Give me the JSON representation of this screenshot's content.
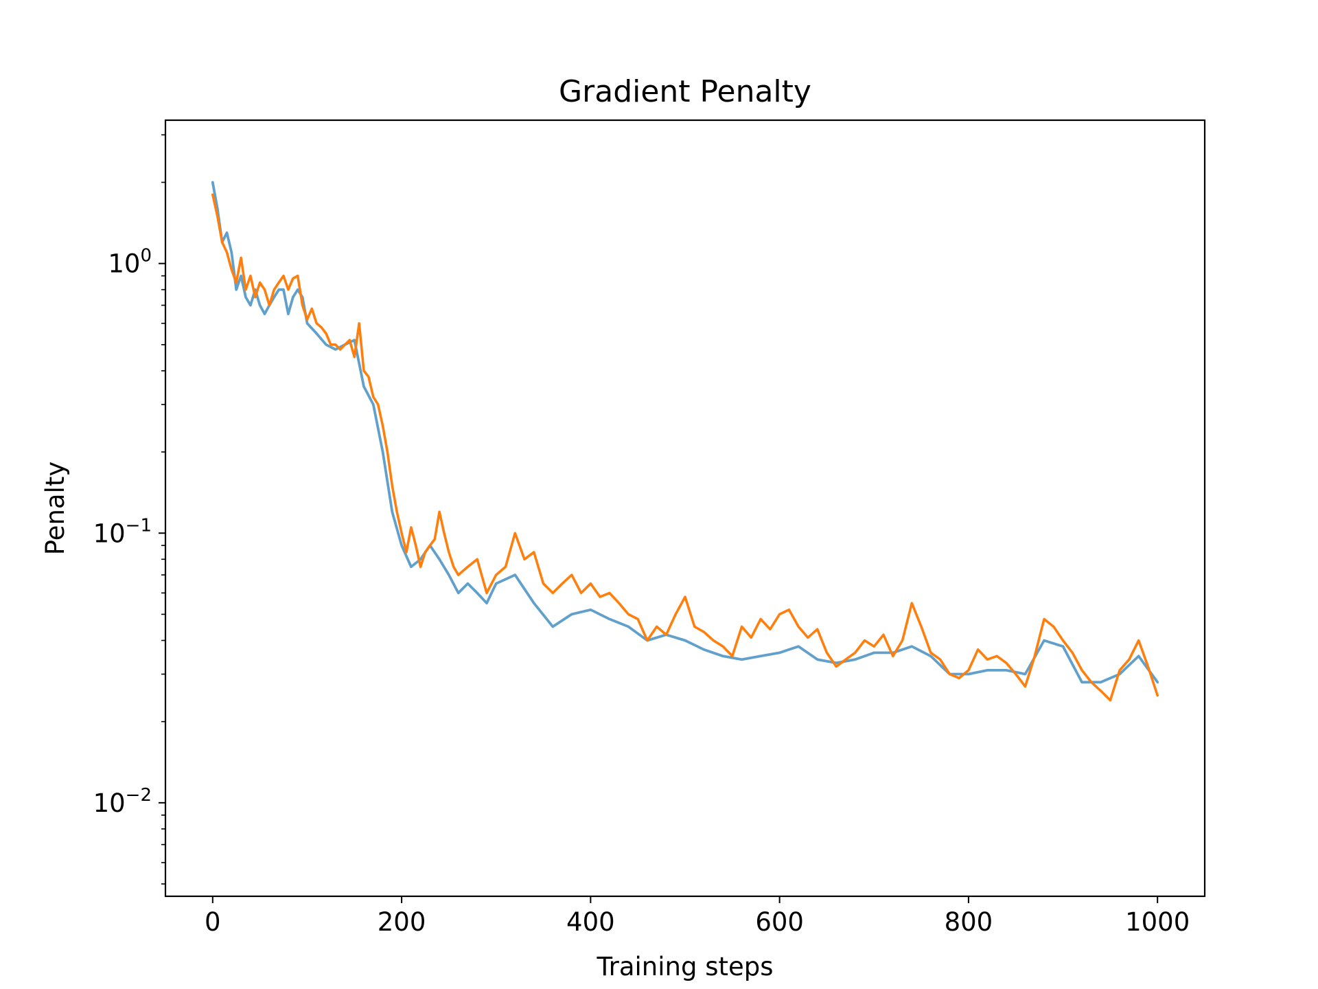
{
  "chart_data": {
    "type": "line",
    "title": "Gradient Penalty",
    "xlabel": "Training steps",
    "ylabel": "Penalty",
    "yscale": "log",
    "xlim": [
      -50,
      1050
    ],
    "ylim": [
      0.0045,
      3.4
    ],
    "grid": false,
    "xticks": [
      0,
      200,
      400,
      600,
      800,
      1000
    ],
    "xtick_labels": [
      "0",
      "200",
      "400",
      "600",
      "800",
      "1000"
    ],
    "yticks": [
      0.01,
      0.1,
      1
    ],
    "ytick_labels": [
      {
        "base": "10",
        "exp": "−2"
      },
      {
        "base": "10",
        "exp": "−1"
      },
      {
        "base": "10",
        "exp": "0"
      }
    ],
    "series": [
      {
        "color": "#62a0cc",
        "style": "raw",
        "x": [
          0,
          5,
          10,
          15,
          20,
          25,
          30,
          35,
          40,
          45,
          50,
          55,
          60,
          65,
          70,
          75,
          80,
          85,
          90,
          95,
          100,
          110,
          120,
          130,
          140,
          150,
          160,
          170,
          180,
          190,
          200,
          210,
          220,
          230,
          240,
          250,
          260,
          270,
          280,
          290,
          300,
          320,
          340,
          360,
          380,
          400,
          420,
          440,
          460,
          480,
          500,
          520,
          540,
          560,
          580,
          600,
          620,
          640,
          660,
          680,
          700,
          720,
          740,
          760,
          780,
          800,
          820,
          840,
          860,
          880,
          900,
          920,
          940,
          960,
          980,
          1000
        ],
        "y": [
          2.0,
          1.6,
          1.2,
          1.3,
          1.1,
          0.8,
          0.9,
          0.75,
          0.7,
          0.8,
          0.7,
          0.65,
          0.7,
          0.75,
          0.8,
          0.8,
          0.65,
          0.75,
          0.8,
          0.75,
          0.6,
          0.55,
          0.5,
          0.48,
          0.5,
          0.52,
          0.35,
          0.3,
          0.2,
          0.12,
          0.09,
          0.075,
          0.08,
          0.09,
          0.08,
          0.07,
          0.06,
          0.065,
          0.06,
          0.055,
          0.065,
          0.07,
          0.055,
          0.045,
          0.05,
          0.052,
          0.048,
          0.045,
          0.04,
          0.042,
          0.04,
          0.037,
          0.035,
          0.034,
          0.035,
          0.036,
          0.038,
          0.034,
          0.033,
          0.034,
          0.036,
          0.036,
          0.038,
          0.035,
          0.03,
          0.03,
          0.031,
          0.031,
          0.03,
          0.04,
          0.038,
          0.028,
          0.028,
          0.03,
          0.035,
          0.028
        ]
      },
      {
        "color": "#ff7f0e",
        "style": "smoothed",
        "x": [
          0,
          5,
          10,
          15,
          20,
          25,
          30,
          35,
          40,
          45,
          50,
          55,
          60,
          65,
          70,
          75,
          80,
          85,
          90,
          95,
          100,
          105,
          110,
          115,
          120,
          125,
          130,
          135,
          140,
          145,
          150,
          155,
          160,
          165,
          170,
          175,
          180,
          185,
          190,
          195,
          200,
          205,
          210,
          215,
          220,
          225,
          230,
          235,
          240,
          245,
          250,
          255,
          260,
          270,
          280,
          290,
          300,
          310,
          320,
          330,
          340,
          350,
          360,
          370,
          380,
          390,
          400,
          410,
          420,
          430,
          440,
          450,
          460,
          470,
          480,
          490,
          500,
          510,
          520,
          530,
          540,
          550,
          560,
          570,
          580,
          590,
          600,
          610,
          620,
          630,
          640,
          650,
          660,
          670,
          680,
          690,
          700,
          710,
          720,
          730,
          740,
          750,
          760,
          770,
          780,
          790,
          800,
          810,
          820,
          830,
          840,
          850,
          860,
          870,
          880,
          890,
          900,
          910,
          920,
          930,
          940,
          950,
          960,
          970,
          980,
          990,
          1000
        ],
        "y": [
          1.8,
          1.5,
          1.2,
          1.1,
          0.95,
          0.85,
          1.05,
          0.8,
          0.9,
          0.75,
          0.85,
          0.8,
          0.7,
          0.8,
          0.85,
          0.9,
          0.8,
          0.88,
          0.9,
          0.7,
          0.62,
          0.68,
          0.6,
          0.58,
          0.55,
          0.5,
          0.5,
          0.48,
          0.5,
          0.52,
          0.45,
          0.6,
          0.4,
          0.38,
          0.32,
          0.3,
          0.25,
          0.2,
          0.15,
          0.12,
          0.1,
          0.085,
          0.105,
          0.09,
          0.075,
          0.085,
          0.09,
          0.095,
          0.12,
          0.1,
          0.085,
          0.075,
          0.07,
          0.075,
          0.08,
          0.06,
          0.07,
          0.075,
          0.1,
          0.08,
          0.085,
          0.065,
          0.06,
          0.065,
          0.07,
          0.06,
          0.065,
          0.058,
          0.06,
          0.055,
          0.05,
          0.048,
          0.04,
          0.045,
          0.042,
          0.05,
          0.058,
          0.045,
          0.043,
          0.04,
          0.038,
          0.035,
          0.045,
          0.041,
          0.048,
          0.044,
          0.05,
          0.052,
          0.045,
          0.041,
          0.044,
          0.036,
          0.032,
          0.034,
          0.036,
          0.04,
          0.038,
          0.042,
          0.035,
          0.04,
          0.055,
          0.045,
          0.036,
          0.034,
          0.03,
          0.029,
          0.031,
          0.037,
          0.034,
          0.035,
          0.033,
          0.03,
          0.027,
          0.035,
          0.048,
          0.045,
          0.04,
          0.036,
          0.031,
          0.028,
          0.026,
          0.024,
          0.031,
          0.034,
          0.04,
          0.032,
          0.025
        ]
      }
    ]
  }
}
